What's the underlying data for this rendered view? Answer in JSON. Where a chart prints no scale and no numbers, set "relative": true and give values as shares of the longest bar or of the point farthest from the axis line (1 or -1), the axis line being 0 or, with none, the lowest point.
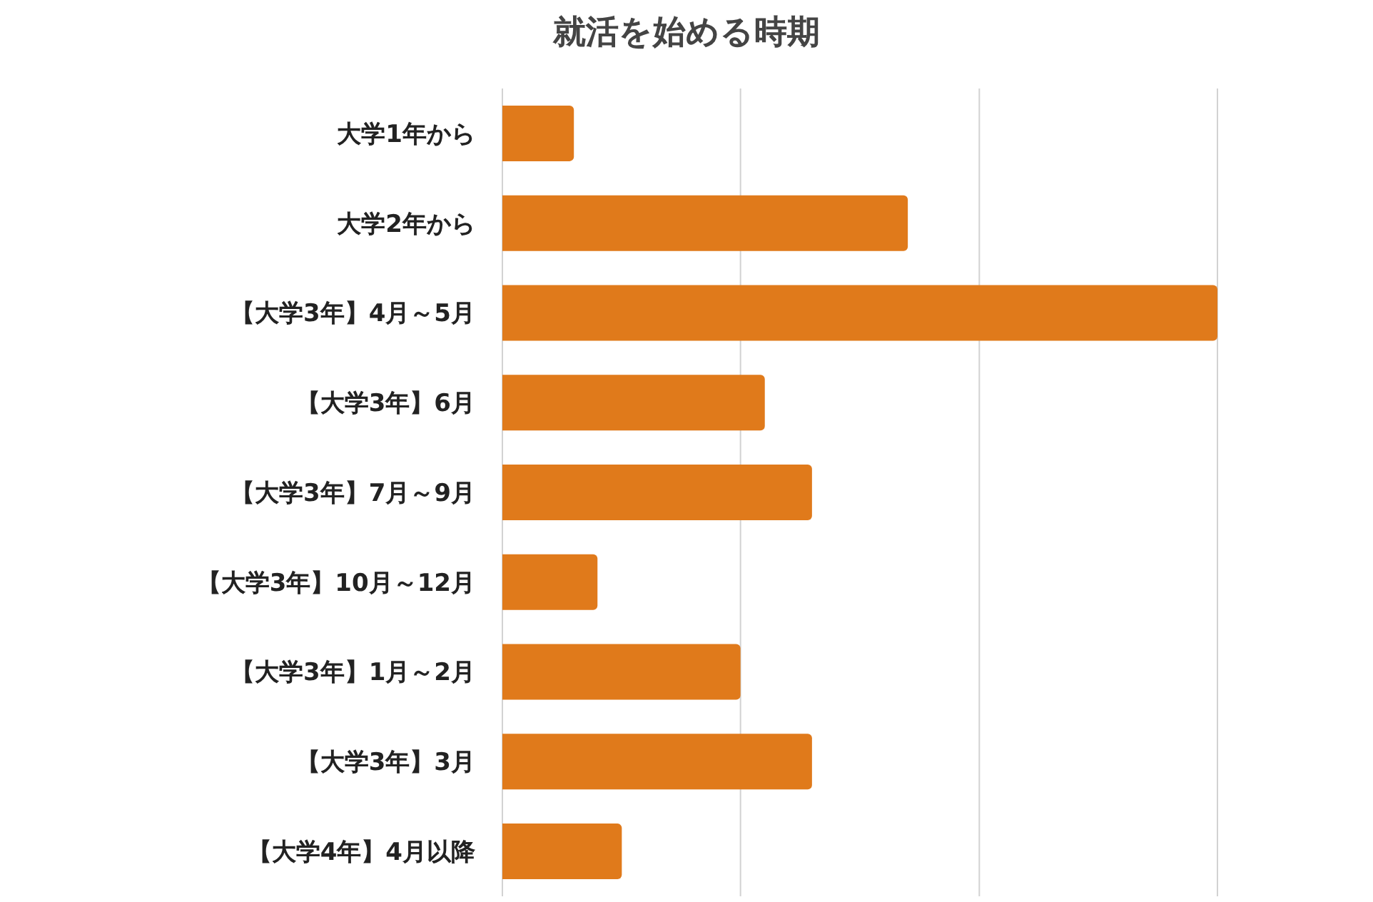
{
  "chart_data": {
    "type": "bar",
    "orientation": "horizontal",
    "title": "就活を始める時期",
    "categories": [
      "大学1年から",
      "大学2年から",
      "【大学3年】4月～5月",
      "【大学3年】6月",
      "【大学3年】7月～9月",
      "【大学3年】10月～12月",
      "【大学3年】1月～2月",
      "【大学3年】3月",
      "【大学4年】4月以降"
    ],
    "values": [
      0.1,
      0.567,
      1,
      0.367,
      0.433,
      0.133,
      0.333,
      0.433,
      0.167
    ],
    "color": "#e07a1b",
    "relative": true,
    "ref_lines": [
      {
        "axis": "x",
        "value": 0.333,
        "color": "#d2d2d2"
      },
      {
        "axis": "x",
        "value": 0.667,
        "color": "#d2d2d2"
      },
      {
        "axis": "x",
        "value": 1,
        "color": "#d2d2d2"
      }
    ],
    "tick_labels": "y"
  }
}
